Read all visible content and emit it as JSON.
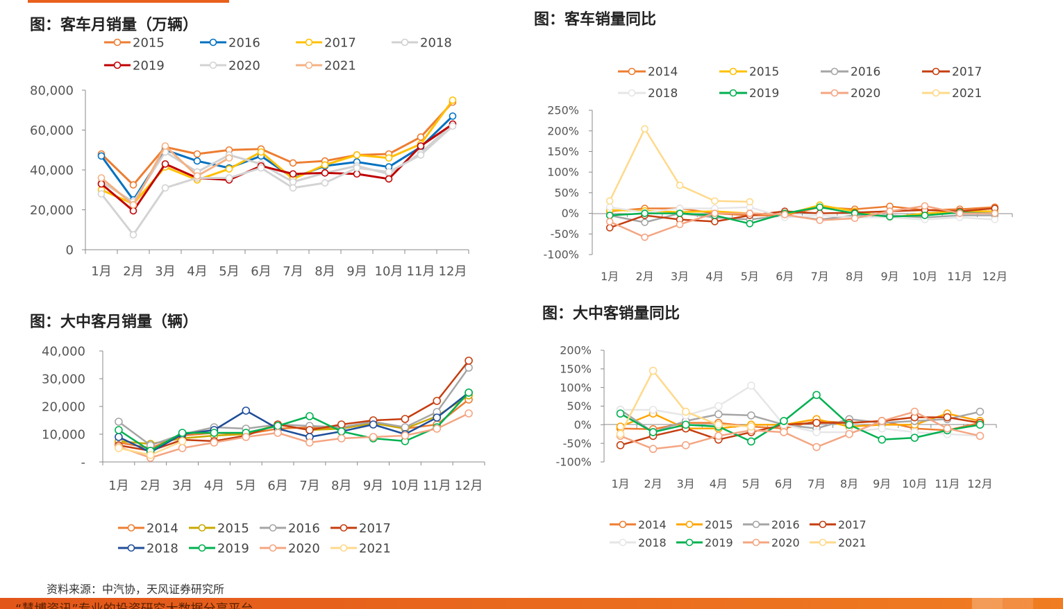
{
  "titles": {
    "top_left": "图：客车月销量（万辆）",
    "top_right": "图：客车销量同比",
    "bottom_left": "图：大中客月销量（辆）",
    "bottom_right": "图：大中客销量同比"
  },
  "source": "资料来源：中汽协，天风证券研究所",
  "footer": "“慧博资讯”专业的投资研究大数据分享平台",
  "chart_data": [
    {
      "id": "c1",
      "type": "line",
      "title": "图：客车月销量（万辆）",
      "categories": [
        "1月",
        "2月",
        "3月",
        "4月",
        "5月",
        "6月",
        "7月",
        "8月",
        "9月",
        "10月",
        "11月",
        "12月"
      ],
      "yticks": [
        "0",
        "20,000",
        "40,000",
        "60,000",
        "80,000"
      ],
      "ylim": [
        0,
        80000
      ],
      "series": [
        {
          "name": "2015",
          "color": "#ED7D31",
          "values": [
            48000,
            32500,
            51500,
            48000,
            50000,
            50500,
            43500,
            44500,
            47500,
            48000,
            56500,
            74000
          ]
        },
        {
          "name": "2016",
          "color": "#0070C0",
          "values": [
            47000,
            25000,
            50000,
            44500,
            41000,
            47000,
            36000,
            42000,
            44000,
            41500,
            51500,
            67000
          ]
        },
        {
          "name": "2017",
          "color": "#FFC000",
          "values": [
            30000,
            23000,
            41500,
            35000,
            40500,
            49000,
            35500,
            42500,
            47500,
            46000,
            53000,
            75000
          ]
        },
        {
          "name": "2018",
          "color": "#D0D0D0",
          "values": [
            34000,
            24000,
            49000,
            39000,
            47500,
            43000,
            34000,
            38500,
            42000,
            38000,
            48500,
            63000
          ]
        },
        {
          "name": "2019",
          "color": "#C00000",
          "values": [
            33000,
            19500,
            43000,
            36000,
            35000,
            42000,
            38000,
            38500,
            38000,
            35500,
            52000,
            63000
          ]
        },
        {
          "name": "2020",
          "color": "#D3D3D3",
          "values": [
            28000,
            7500,
            31000,
            36000,
            36000,
            41000,
            31000,
            33500,
            41000,
            39000,
            47500,
            62000
          ]
        },
        {
          "name": "2021",
          "color": "#F4B183",
          "values": [
            36000,
            22500,
            52000,
            37000,
            46000,
            null,
            null,
            null,
            null,
            null,
            null,
            null
          ]
        }
      ]
    },
    {
      "id": "c2",
      "type": "line",
      "title": "图：客车销量同比",
      "categories": [
        "1月",
        "2月",
        "3月",
        "4月",
        "5月",
        "6月",
        "7月",
        "8月",
        "9月",
        "10月",
        "11月",
        "12月"
      ],
      "yticks": [
        "250%",
        "200%",
        "150%",
        "100%",
        "50%",
        "0%",
        "-50%",
        "-100%"
      ],
      "ylim": [
        -100,
        250
      ],
      "series": [
        {
          "name": "2014",
          "color": "#ED7D31",
          "values": [
            5,
            12,
            12,
            0,
            -5,
            -5,
            15,
            10,
            17,
            8,
            10,
            15
          ]
        },
        {
          "name": "2015",
          "color": "#FFC000",
          "values": [
            8,
            6,
            3,
            5,
            0,
            -3,
            20,
            5,
            -10,
            0,
            5,
            5
          ]
        },
        {
          "name": "2016",
          "color": "#A5A5A5",
          "values": [
            -5,
            -22,
            0,
            -10,
            -15,
            -5,
            -15,
            -5,
            -5,
            -10,
            -5,
            -5
          ]
        },
        {
          "name": "2017",
          "color": "#C43D0F",
          "values": [
            -35,
            -5,
            -15,
            -20,
            -5,
            5,
            0,
            2,
            5,
            8,
            5,
            12
          ]
        },
        {
          "name": "2018",
          "color": "#E7E6E6",
          "values": [
            15,
            2,
            12,
            12,
            15,
            -10,
            -5,
            -10,
            -10,
            -15,
            -10,
            -15
          ]
        },
        {
          "name": "2019",
          "color": "#00B050",
          "values": [
            -5,
            0,
            0,
            -5,
            -25,
            0,
            15,
            0,
            -8,
            -5,
            2,
            0
          ]
        },
        {
          "name": "2020",
          "color": "#F4A582",
          "values": [
            -20,
            -58,
            -27,
            0,
            0,
            -3,
            -17,
            -12,
            5,
            18,
            0,
            0
          ]
        },
        {
          "name": "2021",
          "color": "#FFD98A",
          "values": [
            30,
            205,
            68,
            30,
            28,
            null,
            null,
            null,
            null,
            null,
            null,
            null
          ]
        }
      ]
    },
    {
      "id": "c3",
      "type": "line",
      "title": "图：大中客月销量（辆）",
      "categories": [
        "1月",
        "2月",
        "3月",
        "4月",
        "5月",
        "6月",
        "7月",
        "8月",
        "9月",
        "10月",
        "11月",
        "12月"
      ],
      "yticks": [
        "-",
        "10,000",
        "20,000",
        "30,000",
        "40,000"
      ],
      "ylim": [
        0,
        40000
      ],
      "series": [
        {
          "name": "2014",
          "color": "#ED7D31",
          "values": [
            7000,
            5000,
            9500,
            10500,
            10000,
            12000,
            12500,
            12000,
            14000,
            12000,
            13500,
            22500
          ]
        },
        {
          "name": "2015",
          "color": "#C9A800",
          "values": [
            7500,
            6500,
            8500,
            9500,
            10000,
            13500,
            11500,
            12000,
            14000,
            12000,
            16500,
            24000
          ]
        },
        {
          "name": "2016",
          "color": "#A5A5A5",
          "values": [
            14500,
            6000,
            10000,
            12500,
            12000,
            13500,
            13000,
            12500,
            14500,
            12500,
            18000,
            34000
          ]
        },
        {
          "name": "2017",
          "color": "#C43D0F",
          "values": [
            6000,
            4000,
            8000,
            7500,
            9500,
            13500,
            11500,
            13500,
            15000,
            15500,
            22000,
            36500
          ]
        },
        {
          "name": "2018",
          "color": "#1F4E99",
          "values": [
            9000,
            3500,
            10000,
            11500,
            18500,
            12000,
            9000,
            11000,
            13500,
            10000,
            16000,
            25000
          ]
        },
        {
          "name": "2019",
          "color": "#00B050",
          "values": [
            11500,
            4000,
            10500,
            10500,
            10500,
            13000,
            16500,
            11000,
            8500,
            7500,
            12500,
            25000
          ]
        },
        {
          "name": "2020",
          "color": "#F4A582",
          "values": [
            5500,
            1500,
            5000,
            7000,
            9000,
            10500,
            7000,
            8500,
            9000,
            9500,
            12000,
            17500
          ]
        },
        {
          "name": "2021",
          "color": "#FFD98A",
          "values": [
            5000,
            2500,
            7500,
            null,
            null,
            null,
            null,
            null,
            null,
            null,
            null,
            null
          ]
        }
      ]
    },
    {
      "id": "c4",
      "type": "line",
      "title": "图：大中客销量同比",
      "categories": [
        "1月",
        "2月",
        "3月",
        "4月",
        "5月",
        "6月",
        "7月",
        "8月",
        "9月",
        "10月",
        "11月",
        "12月"
      ],
      "yticks": [
        "200%",
        "150%",
        "100%",
        "50%",
        "0%",
        "-50%",
        "-100%"
      ],
      "ylim": [
        -100,
        200
      ],
      "series": [
        {
          "name": "2014",
          "color": "#ED7D31",
          "values": [
            -10,
            -12,
            5,
            5,
            -5,
            -10,
            10,
            5,
            10,
            -10,
            -15,
            5
          ]
        },
        {
          "name": "2015",
          "color": "#FFA500",
          "values": [
            -5,
            30,
            -10,
            -10,
            0,
            0,
            15,
            -5,
            0,
            0,
            30,
            10
          ]
        },
        {
          "name": "2016",
          "color": "#A5A5A5",
          "values": [
            40,
            -20,
            10,
            28,
            25,
            0,
            -10,
            15,
            5,
            10,
            15,
            35
          ]
        },
        {
          "name": "2017",
          "color": "#C43D0F",
          "values": [
            -55,
            -30,
            -10,
            -40,
            -20,
            0,
            5,
            5,
            10,
            20,
            20,
            5
          ]
        },
        {
          "name": "2018",
          "color": "#E7E6E6",
          "values": [
            40,
            40,
            25,
            50,
            105,
            0,
            -20,
            -20,
            -10,
            -20,
            -25,
            -30
          ]
        },
        {
          "name": "2019",
          "color": "#00B050",
          "values": [
            30,
            -20,
            0,
            -5,
            -45,
            10,
            80,
            0,
            -40,
            -35,
            -15,
            0
          ]
        },
        {
          "name": "2020",
          "color": "#F4A582",
          "values": [
            -30,
            -65,
            -55,
            -30,
            -15,
            -20,
            -60,
            -25,
            10,
            35,
            -10,
            -30
          ]
        },
        {
          "name": "2021",
          "color": "#FFD98A",
          "values": [
            -25,
            145,
            35,
            0,
            -5,
            null,
            null,
            null,
            null,
            null,
            null,
            null
          ]
        }
      ]
    }
  ]
}
